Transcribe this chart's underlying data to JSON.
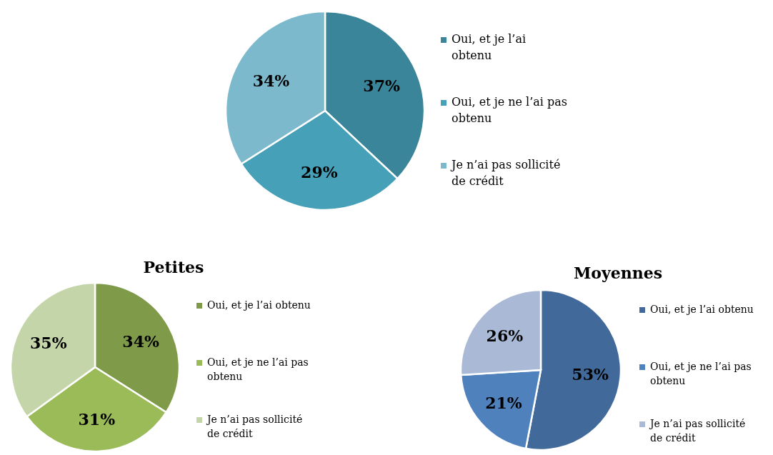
{
  "chart_data": [
    {
      "type": "pie",
      "categories": [
        "Oui, et je l’ai obtenu",
        "Oui, et je ne l’ai pas obtenu",
        "Je n’ai pas sollicité de crédit"
      ],
      "values": [
        37,
        29,
        34
      ],
      "value_labels": [
        "37%",
        "29%",
        "34%"
      ],
      "colors": [
        "#3a8599",
        "#46a0b8",
        "#7db9cd"
      ],
      "legend": "right"
    },
    {
      "type": "pie",
      "title": "Petites",
      "categories": [
        "Oui, et je l’ai obtenu",
        "Oui, et je ne l’ai pas obtenu",
        "Je n’ai pas sollicité de crédit"
      ],
      "values": [
        34,
        31,
        35
      ],
      "value_labels": [
        "34%",
        "31%",
        "35%"
      ],
      "colors": [
        "#7f9a48",
        "#9bbb59",
        "#c4d6a9"
      ],
      "legend": "right"
    },
    {
      "type": "pie",
      "title": "Moyennes",
      "categories": [
        "Oui, et je l’ai obtenu",
        "Oui, et je ne l’ai pas obtenu",
        "Je n’ai pas sollicité de crédit"
      ],
      "values": [
        53,
        21,
        26
      ],
      "value_labels": [
        "53%",
        "21%",
        "26%"
      ],
      "colors": [
        "#416a9b",
        "#4f81bd",
        "#aab9d6"
      ],
      "legend": "right"
    }
  ]
}
